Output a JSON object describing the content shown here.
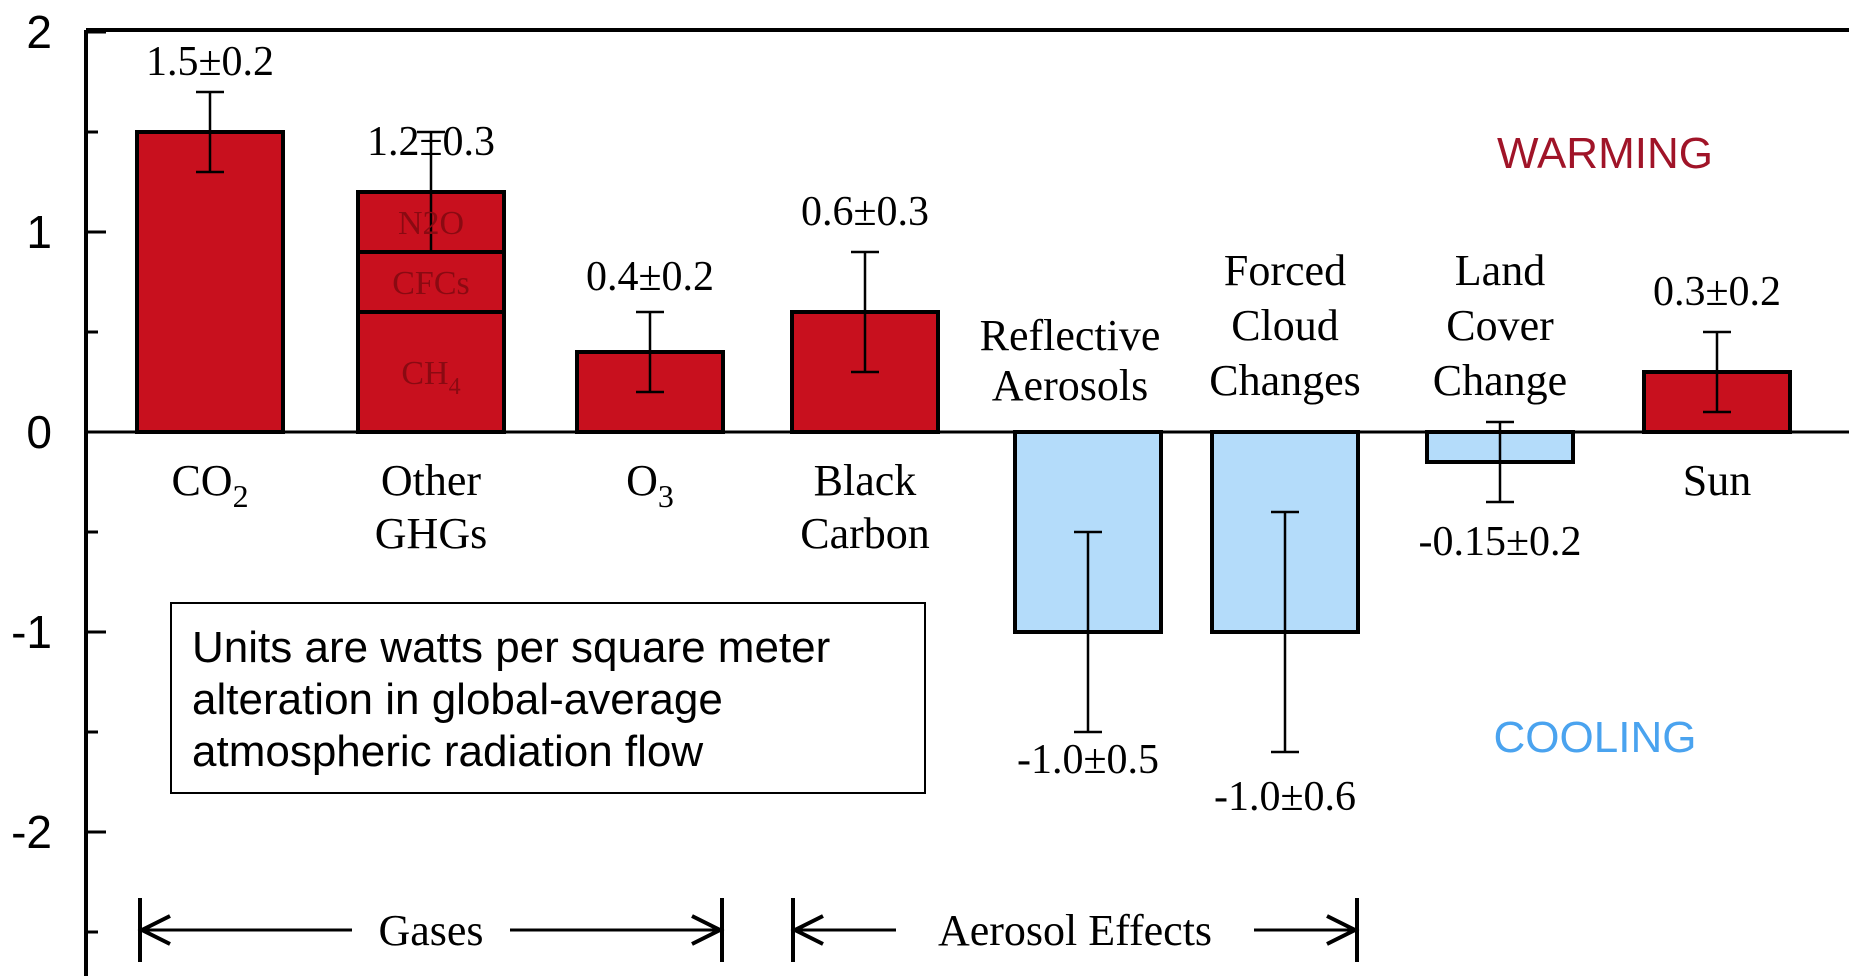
{
  "chart_data": {
    "type": "bar",
    "ylim": [
      -2.7,
      2.0
    ],
    "yticks": [
      "2",
      "1",
      "0",
      "-1",
      "-2"
    ],
    "colors": {
      "positive": "#c8101e",
      "negative": "#b4dcfa",
      "warming_text": "#a01428",
      "cooling_text": "#4aa3ef"
    },
    "bars": [
      {
        "label": "CO2",
        "value": 1.5,
        "error": 0.2,
        "value_label": "1.5±0.2"
      },
      {
        "label": "Other GHGs",
        "value": 1.2,
        "error": 0.3,
        "value_label": "1.2±0.3",
        "segments": [
          {
            "name": "CH4",
            "value": 0.6
          },
          {
            "name": "CFCs",
            "value": 0.3
          },
          {
            "name": "N2O",
            "value": 0.3
          }
        ]
      },
      {
        "label": "O3",
        "value": 0.4,
        "error": 0.2,
        "value_label": "0.4±0.2"
      },
      {
        "label": "Black Carbon",
        "value": 0.6,
        "error": 0.3,
        "value_label": "0.6±0.3"
      },
      {
        "label": "Reflective Aerosols",
        "value": -1.0,
        "error": 0.5,
        "value_label": "-1.0±0.5"
      },
      {
        "label": "Forced Cloud Changes",
        "value": -1.0,
        "error": 0.6,
        "value_label": "-1.0±0.6"
      },
      {
        "label": "Land Cover Change",
        "value": -0.15,
        "error": 0.2,
        "value_label": "-0.15±0.2"
      },
      {
        "label": "Sun",
        "value": 0.3,
        "error": 0.2,
        "value_label": "0.3±0.2"
      }
    ],
    "annotations": {
      "warming": "WARMING",
      "cooling": "COOLING",
      "group_gases": "Gases",
      "group_aerosols": "Aerosol Effects"
    }
  },
  "note": {
    "line1": "Units are watts per square meter",
    "line2": "alteration in global-average",
    "line3": "atmospheric radiation flow"
  }
}
